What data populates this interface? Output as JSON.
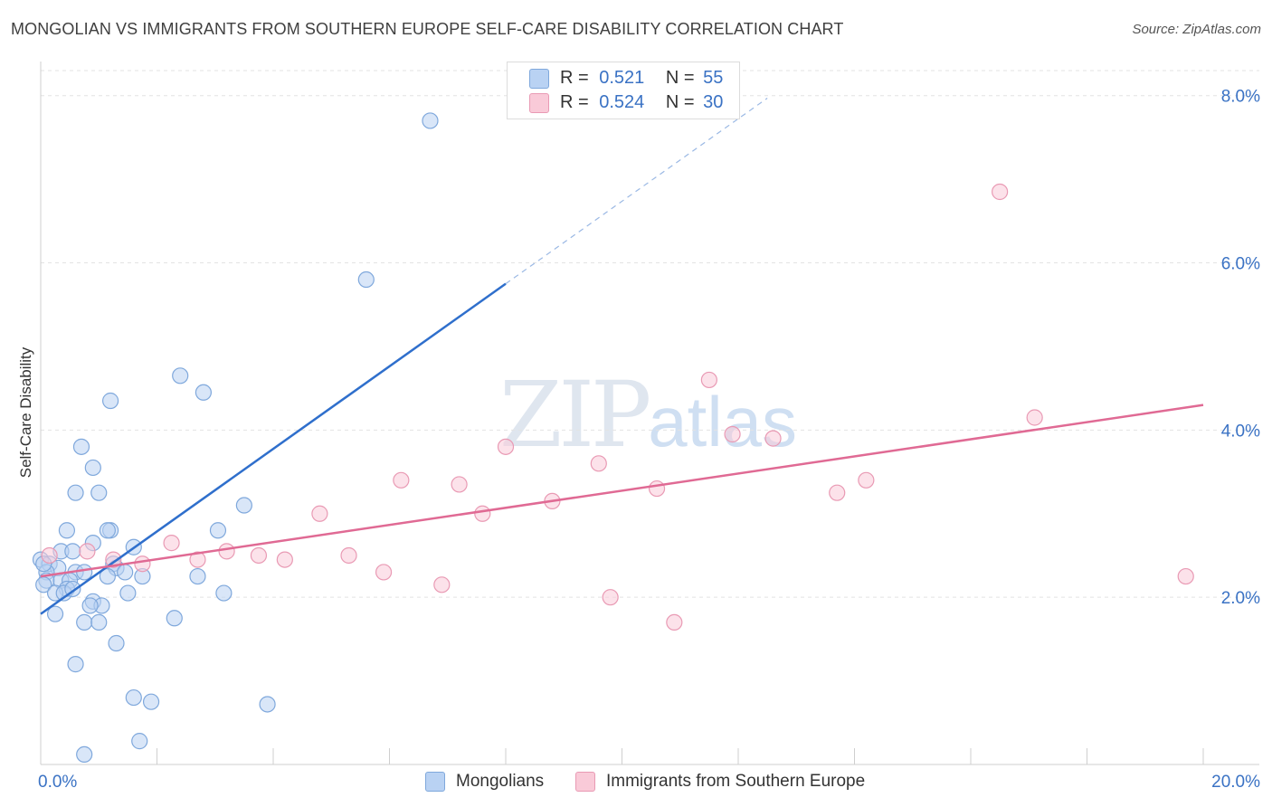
{
  "header": {
    "title": "MONGOLIAN VS IMMIGRANTS FROM SOUTHERN EUROPE SELF-CARE DISABILITY CORRELATION CHART",
    "source": "Source: ZipAtlas.com"
  },
  "watermark": {
    "zip": "ZIP",
    "atlas": "atlas"
  },
  "legend": {
    "r_label": "R =",
    "n_label": "N =",
    "series": [
      {
        "name": "Mongolians",
        "r": "0.521",
        "n": "55"
      },
      {
        "name": "Immigrants from Southern Europe",
        "r": "0.524",
        "n": "30"
      }
    ]
  },
  "chart_data": {
    "type": "scatter",
    "title": "MONGOLIAN VS IMMIGRANTS FROM SOUTHERN EUROPE SELF-CARE DISABILITY CORRELATION CHART",
    "xlabel": "",
    "ylabel": "Self-Care Disability",
    "xlim": [
      0,
      20
    ],
    "ylim": [
      0,
      8.3
    ],
    "x_tick_labels": [
      "0.0%",
      "20.0%"
    ],
    "y_ticks": [
      2,
      4,
      6,
      8
    ],
    "y_tick_labels": [
      "2.0%",
      "4.0%",
      "6.0%",
      "8.0%"
    ],
    "grid": true,
    "colors": {
      "blue_fill": "#b9d2f3",
      "blue_stroke": "#7fa8dc",
      "blue_line": "#2f6fcc",
      "pink_fill": "#f9cad8",
      "pink_stroke": "#e99ab4",
      "pink_line": "#e06a94",
      "axis_text": "#3a72c4",
      "grid": "#e3e3e3"
    },
    "series": [
      {
        "name": "Mongolians",
        "r": 0.521,
        "n": 55,
        "trend": {
          "x0": 0.0,
          "y0": 1.8,
          "x1": 8.0,
          "y1": 5.75,
          "dash_to_x": 12.5,
          "dash_to_y": 7.97
        },
        "points": [
          [
            6.7,
            7.7
          ],
          [
            5.6,
            5.8
          ],
          [
            2.4,
            4.65
          ],
          [
            2.8,
            4.45
          ],
          [
            1.2,
            4.35
          ],
          [
            0.7,
            3.8
          ],
          [
            0.9,
            3.55
          ],
          [
            0.6,
            3.25
          ],
          [
            1.0,
            3.25
          ],
          [
            3.5,
            3.1
          ],
          [
            0.45,
            2.8
          ],
          [
            1.2,
            2.8
          ],
          [
            1.15,
            2.8
          ],
          [
            3.05,
            2.8
          ],
          [
            0.9,
            2.65
          ],
          [
            1.6,
            2.6
          ],
          [
            0.35,
            2.55
          ],
          [
            0.55,
            2.55
          ],
          [
            0.0,
            2.45
          ],
          [
            0.15,
            2.4
          ],
          [
            1.25,
            2.4
          ],
          [
            0.3,
            2.35
          ],
          [
            0.6,
            2.3
          ],
          [
            0.1,
            2.3
          ],
          [
            1.3,
            2.35
          ],
          [
            0.75,
            2.3
          ],
          [
            1.15,
            2.25
          ],
          [
            1.45,
            2.3
          ],
          [
            1.75,
            2.25
          ],
          [
            2.7,
            2.25
          ],
          [
            0.1,
            2.2
          ],
          [
            0.35,
            2.2
          ],
          [
            0.5,
            2.2
          ],
          [
            0.45,
            2.1
          ],
          [
            0.05,
            2.15
          ],
          [
            0.25,
            2.05
          ],
          [
            0.4,
            2.05
          ],
          [
            0.55,
            2.1
          ],
          [
            1.5,
            2.05
          ],
          [
            3.15,
            2.05
          ],
          [
            0.9,
            1.95
          ],
          [
            1.05,
            1.9
          ],
          [
            0.85,
            1.9
          ],
          [
            0.25,
            1.8
          ],
          [
            2.3,
            1.75
          ],
          [
            0.75,
            1.7
          ],
          [
            1.0,
            1.7
          ],
          [
            1.3,
            1.45
          ],
          [
            0.6,
            1.2
          ],
          [
            1.6,
            0.8
          ],
          [
            1.9,
            0.75
          ],
          [
            3.9,
            0.72
          ],
          [
            1.7,
            0.28
          ],
          [
            0.75,
            0.12
          ],
          [
            0.05,
            2.4
          ]
        ]
      },
      {
        "name": "Immigrants from Southern Europe",
        "r": 0.524,
        "n": 30,
        "trend": {
          "x0": 0.0,
          "y0": 2.25,
          "x1": 20.0,
          "y1": 4.3
        },
        "points": [
          [
            16.5,
            6.85
          ],
          [
            11.5,
            4.6
          ],
          [
            17.1,
            4.15
          ],
          [
            11.9,
            3.95
          ],
          [
            12.6,
            3.9
          ],
          [
            8.0,
            3.8
          ],
          [
            9.6,
            3.6
          ],
          [
            6.2,
            3.4
          ],
          [
            14.2,
            3.4
          ],
          [
            7.2,
            3.35
          ],
          [
            10.6,
            3.3
          ],
          [
            13.7,
            3.25
          ],
          [
            8.8,
            3.15
          ],
          [
            7.6,
            3.0
          ],
          [
            4.8,
            3.0
          ],
          [
            2.25,
            2.65
          ],
          [
            0.8,
            2.55
          ],
          [
            3.2,
            2.55
          ],
          [
            0.15,
            2.5
          ],
          [
            5.3,
            2.5
          ],
          [
            3.75,
            2.5
          ],
          [
            2.7,
            2.45
          ],
          [
            1.25,
            2.45
          ],
          [
            1.75,
            2.4
          ],
          [
            4.2,
            2.45
          ],
          [
            5.9,
            2.3
          ],
          [
            6.9,
            2.15
          ],
          [
            9.8,
            2.0
          ],
          [
            19.7,
            2.25
          ],
          [
            10.9,
            1.7
          ]
        ]
      }
    ]
  }
}
